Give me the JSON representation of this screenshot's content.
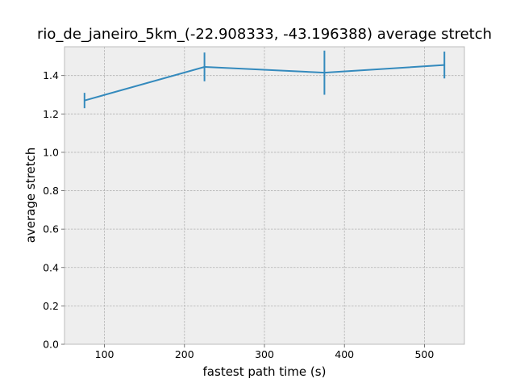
{
  "chart_data": {
    "type": "line",
    "title": "rio_de_janeiro_5km_(-22.908333, -43.196388) average stretch",
    "xlabel": "fastest path time (s)",
    "ylabel": "average stretch",
    "xlim": [
      50,
      550
    ],
    "ylim": [
      0,
      1.55
    ],
    "x_ticks": [
      100,
      200,
      300,
      400,
      500
    ],
    "y_ticks": [
      0.0,
      0.2,
      0.4,
      0.6,
      0.8,
      1.0,
      1.2,
      1.4
    ],
    "x_tick_labels": [
      "100",
      "200",
      "300",
      "400",
      "500"
    ],
    "y_tick_labels": [
      "0.0",
      "0.2",
      "0.4",
      "0.6",
      "0.8",
      "1.0",
      "1.2",
      "1.4"
    ],
    "grid": true,
    "series": [
      {
        "x": [
          75,
          225,
          375,
          525
        ],
        "y": [
          1.27,
          1.445,
          1.415,
          1.455
        ],
        "yerr": [
          0.04,
          0.075,
          0.115,
          0.07
        ],
        "color": "#348abd"
      }
    ],
    "colors": {
      "plot_background": "#eeeeee",
      "grid": "#b2b2b2",
      "spine": "#bcbcbc",
      "series": "#348abd"
    }
  }
}
